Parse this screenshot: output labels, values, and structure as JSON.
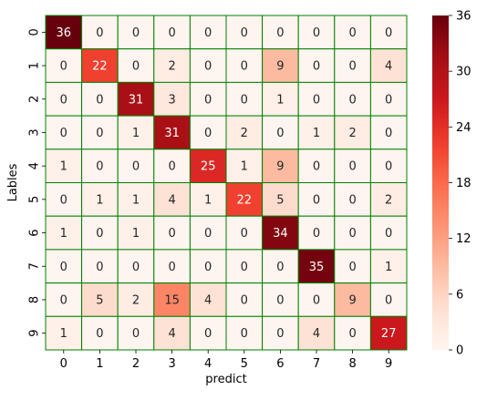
{
  "chart_data": {
    "type": "heatmap",
    "title": "",
    "xlabel": "predict",
    "ylabel": "Lables",
    "x_categories": [
      "0",
      "1",
      "2",
      "3",
      "4",
      "5",
      "6",
      "7",
      "8",
      "9"
    ],
    "y_categories": [
      "0",
      "1",
      "2",
      "3",
      "4",
      "5",
      "6",
      "7",
      "8",
      "9"
    ],
    "values": [
      [
        36,
        0,
        0,
        0,
        0,
        0,
        0,
        0,
        0,
        0
      ],
      [
        0,
        22,
        0,
        2,
        0,
        0,
        9,
        0,
        0,
        4
      ],
      [
        0,
        0,
        31,
        3,
        0,
        0,
        1,
        0,
        0,
        0
      ],
      [
        0,
        0,
        1,
        31,
        0,
        2,
        0,
        1,
        2,
        0
      ],
      [
        1,
        0,
        0,
        0,
        25,
        1,
        9,
        0,
        0,
        0
      ],
      [
        0,
        1,
        1,
        4,
        1,
        22,
        5,
        0,
        0,
        2
      ],
      [
        1,
        0,
        1,
        0,
        0,
        0,
        34,
        0,
        0,
        0
      ],
      [
        0,
        0,
        0,
        0,
        0,
        0,
        0,
        35,
        0,
        1
      ],
      [
        0,
        5,
        2,
        15,
        4,
        0,
        0,
        0,
        9,
        0
      ],
      [
        1,
        0,
        0,
        4,
        0,
        0,
        0,
        4,
        0,
        27
      ]
    ],
    "colormap": "Reds",
    "cell_border_color": "#008000",
    "vmin": 0,
    "vmax": 36,
    "colorbar_ticks": [
      "0",
      "6",
      "12",
      "18",
      "24",
      "30",
      "36"
    ],
    "colorbar_tick_values": [
      0,
      6,
      12,
      18,
      24,
      30,
      36
    ],
    "grid": false
  }
}
